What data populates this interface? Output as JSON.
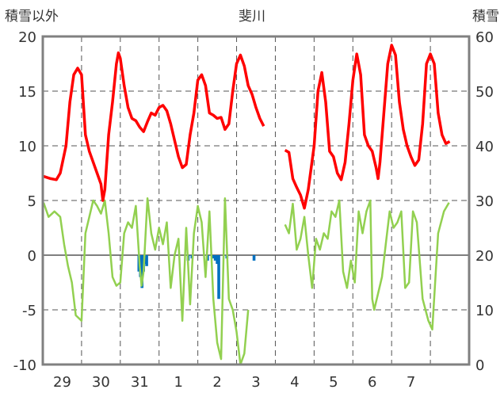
{
  "chart_data": {
    "type": "line",
    "title": "斐川",
    "left_axis_title": "積雪以外",
    "right_axis_title": "積雪",
    "left_ylim": [
      -10,
      20
    ],
    "left_yticks": [
      "-10",
      "-5",
      "0",
      "5",
      "10",
      "15",
      "20"
    ],
    "right_ylim": [
      0,
      60
    ],
    "right_yticks": [
      "0",
      "10",
      "20",
      "30",
      "40",
      "50",
      "60"
    ],
    "x_range": [
      28.5,
      39.5
    ],
    "x_tick_labels": [
      "29",
      "30",
      "31",
      "1",
      "2",
      "3",
      "4",
      "5",
      "6",
      "7"
    ],
    "x_tick_positions": [
      29,
      30,
      31,
      32,
      33,
      34,
      35,
      36,
      37,
      38
    ],
    "day_boundaries": [
      29.5,
      30.5,
      31.5,
      32.5,
      33.5,
      34.5,
      35.5,
      36.5,
      37.5,
      38.5
    ],
    "grid": true,
    "colors": {
      "temperature": "#ff0000",
      "dewpoint": "#92d050",
      "precipitation": "#0070c0",
      "frame": "#808080"
    },
    "series": [
      {
        "key": "temperature",
        "points": [
          [
            28.52,
            7.2
          ],
          [
            28.7,
            7.0
          ],
          [
            28.85,
            6.9
          ],
          [
            28.95,
            7.5
          ],
          [
            29.1,
            10
          ],
          [
            29.2,
            14
          ],
          [
            29.3,
            16.5
          ],
          [
            29.4,
            17.1
          ],
          [
            29.5,
            16.5
          ],
          [
            29.6,
            11
          ],
          [
            29.7,
            9.5
          ],
          [
            29.8,
            8.5
          ],
          [
            29.9,
            7.5
          ],
          [
            30.0,
            6.5
          ],
          [
            30.05,
            5.0
          ],
          [
            30.1,
            6.0
          ],
          [
            30.2,
            11
          ],
          [
            30.3,
            14
          ],
          [
            30.4,
            17.5
          ],
          [
            30.45,
            18.5
          ],
          [
            30.5,
            18.0
          ],
          [
            30.6,
            15.5
          ],
          [
            30.7,
            13.5
          ],
          [
            30.8,
            12.5
          ],
          [
            30.9,
            12.3
          ],
          [
            31.0,
            11.7
          ],
          [
            31.1,
            11.3
          ],
          [
            31.2,
            12.2
          ],
          [
            31.3,
            13.0
          ],
          [
            31.4,
            12.8
          ],
          [
            31.5,
            13.5
          ],
          [
            31.6,
            13.7
          ],
          [
            31.7,
            13.2
          ],
          [
            31.8,
            12.0
          ],
          [
            31.9,
            10.5
          ],
          [
            32.0,
            9.0
          ],
          [
            32.1,
            8.0
          ],
          [
            32.2,
            8.3
          ],
          [
            32.3,
            11
          ],
          [
            32.4,
            13
          ],
          [
            32.5,
            16
          ],
          [
            32.6,
            16.5
          ],
          [
            32.7,
            15.5
          ],
          [
            32.8,
            13
          ],
          [
            32.9,
            12.8
          ],
          [
            33.0,
            12.5
          ],
          [
            33.1,
            12.6
          ],
          [
            33.2,
            11.5
          ],
          [
            33.3,
            12
          ],
          [
            33.4,
            15
          ],
          [
            33.5,
            17.5
          ],
          [
            33.6,
            18.3
          ],
          [
            33.7,
            17.3
          ],
          [
            33.8,
            15.5
          ],
          [
            33.9,
            14.7
          ],
          [
            34.0,
            13.5
          ],
          [
            34.1,
            12.5
          ],
          [
            34.2,
            11.8
          ]
        ],
        "points2": [
          [
            34.75,
            9.6
          ],
          [
            34.85,
            9.4
          ],
          [
            34.95,
            7.0
          ],
          [
            35.05,
            6.2
          ],
          [
            35.15,
            5.5
          ],
          [
            35.25,
            4.3
          ],
          [
            35.35,
            6.0
          ],
          [
            35.5,
            10
          ],
          [
            35.6,
            15
          ],
          [
            35.7,
            16.7
          ],
          [
            35.8,
            14
          ],
          [
            35.9,
            9.5
          ],
          [
            36.0,
            9.0
          ],
          [
            36.1,
            7.5
          ],
          [
            36.2,
            6.9
          ],
          [
            36.3,
            8.5
          ],
          [
            36.4,
            12
          ],
          [
            36.5,
            16
          ],
          [
            36.6,
            18.4
          ],
          [
            36.7,
            16.5
          ],
          [
            36.8,
            11
          ],
          [
            36.9,
            10
          ],
          [
            37.0,
            9.5
          ],
          [
            37.1,
            8.0
          ],
          [
            37.15,
            7.0
          ],
          [
            37.2,
            8.5
          ],
          [
            37.3,
            13
          ],
          [
            37.4,
            17.5
          ],
          [
            37.5,
            19.2
          ],
          [
            37.6,
            18.3
          ],
          [
            37.7,
            14
          ],
          [
            37.8,
            11.5
          ],
          [
            37.9,
            10
          ],
          [
            38.0,
            9.0
          ],
          [
            38.1,
            8.2
          ],
          [
            38.2,
            8.7
          ],
          [
            38.3,
            12
          ],
          [
            38.4,
            17.5
          ],
          [
            38.5,
            18.4
          ],
          [
            38.6,
            17.5
          ],
          [
            38.7,
            13
          ],
          [
            38.8,
            11
          ],
          [
            38.9,
            10.2
          ],
          [
            39.0,
            10.4
          ]
        ]
      },
      {
        "key": "dewpoint",
        "points": [
          [
            28.52,
            4.8
          ],
          [
            28.65,
            3.5
          ],
          [
            28.8,
            4.0
          ],
          [
            28.95,
            3.5
          ],
          [
            29.05,
            1.0
          ],
          [
            29.15,
            -1.0
          ],
          [
            29.25,
            -2.5
          ],
          [
            29.35,
            -5.5
          ],
          [
            29.5,
            -6.0
          ],
          [
            29.6,
            2.0
          ],
          [
            29.7,
            3.5
          ],
          [
            29.8,
            5.0
          ],
          [
            29.9,
            4.5
          ],
          [
            30.0,
            3.8
          ],
          [
            30.1,
            5.0
          ],
          [
            30.2,
            2.0
          ],
          [
            30.3,
            -2.0
          ],
          [
            30.4,
            -2.8
          ],
          [
            30.5,
            -2.5
          ],
          [
            30.6,
            2.0
          ],
          [
            30.7,
            3.0
          ],
          [
            30.8,
            2.5
          ],
          [
            30.9,
            4.5
          ],
          [
            31.0,
            -1.0
          ],
          [
            31.05,
            -2.8
          ],
          [
            31.1,
            -1.5
          ],
          [
            31.2,
            5.2
          ],
          [
            31.3,
            2.0
          ],
          [
            31.4,
            0.5
          ],
          [
            31.5,
            2.5
          ],
          [
            31.6,
            1.0
          ],
          [
            31.7,
            3.0
          ],
          [
            31.8,
            -3.0
          ],
          [
            31.9,
            0.0
          ],
          [
            32.0,
            1.5
          ],
          [
            32.1,
            -6.0
          ],
          [
            32.2,
            2.5
          ],
          [
            32.3,
            -4.5
          ],
          [
            32.4,
            2.0
          ],
          [
            32.5,
            4.5
          ],
          [
            32.6,
            3.0
          ],
          [
            32.7,
            -2.0
          ],
          [
            32.8,
            4.0
          ],
          [
            32.9,
            -4.0
          ],
          [
            33.0,
            -8.0
          ],
          [
            33.1,
            -9.5
          ],
          [
            33.2,
            5.2
          ],
          [
            33.3,
            -4.0
          ],
          [
            33.4,
            -5.0
          ],
          [
            33.5,
            -7.0
          ],
          [
            33.6,
            -10.0
          ],
          [
            33.7,
            -9.0
          ],
          [
            33.8,
            -5.0
          ]
        ],
        "points2": [
          [
            34.75,
            2.8
          ],
          [
            34.85,
            2.0
          ],
          [
            34.95,
            4.7
          ],
          [
            35.05,
            0.5
          ],
          [
            35.15,
            1.5
          ],
          [
            35.25,
            3.5
          ],
          [
            35.35,
            0.0
          ],
          [
            35.45,
            -3.0
          ],
          [
            35.55,
            1.5
          ],
          [
            35.65,
            0.5
          ],
          [
            35.75,
            2.0
          ],
          [
            35.85,
            1.5
          ],
          [
            35.95,
            4.0
          ],
          [
            36.05,
            3.5
          ],
          [
            36.15,
            5.0
          ],
          [
            36.25,
            -1.5
          ],
          [
            36.35,
            -3.0
          ],
          [
            36.45,
            -0.5
          ],
          [
            36.55,
            -2.5
          ],
          [
            36.65,
            4.0
          ],
          [
            36.75,
            2.0
          ],
          [
            36.85,
            4.0
          ],
          [
            36.95,
            5.0
          ],
          [
            37.0,
            -4.0
          ],
          [
            37.05,
            -5.0
          ],
          [
            37.15,
            -3.5
          ],
          [
            37.25,
            -2.0
          ],
          [
            37.35,
            1.0
          ],
          [
            37.45,
            4.0
          ],
          [
            37.55,
            2.5
          ],
          [
            37.65,
            3.0
          ],
          [
            37.75,
            4.0
          ],
          [
            37.85,
            -3.0
          ],
          [
            37.95,
            -2.5
          ],
          [
            38.05,
            4.0
          ],
          [
            38.15,
            3.0
          ],
          [
            38.3,
            -4.0
          ],
          [
            38.45,
            -6.0
          ],
          [
            38.55,
            -6.8
          ],
          [
            38.7,
            2.0
          ],
          [
            38.85,
            4.0
          ],
          [
            38.98,
            4.8
          ]
        ]
      }
    ],
    "precipitation_bars": [
      [
        30.98,
        -1.5
      ],
      [
        31.02,
        -2.0
      ],
      [
        31.06,
        -3.0
      ],
      [
        31.1,
        -1.5
      ],
      [
        31.14,
        -0.8
      ],
      [
        31.18,
        -1.0
      ],
      [
        32.25,
        -0.5
      ],
      [
        32.35,
        -0.3
      ],
      [
        32.75,
        -0.5
      ],
      [
        32.9,
        -0.3
      ],
      [
        32.95,
        -0.5
      ],
      [
        33.0,
        -0.8
      ],
      [
        33.04,
        -4.0
      ],
      [
        33.25,
        -0.3
      ],
      [
        33.95,
        -0.5
      ]
    ]
  }
}
